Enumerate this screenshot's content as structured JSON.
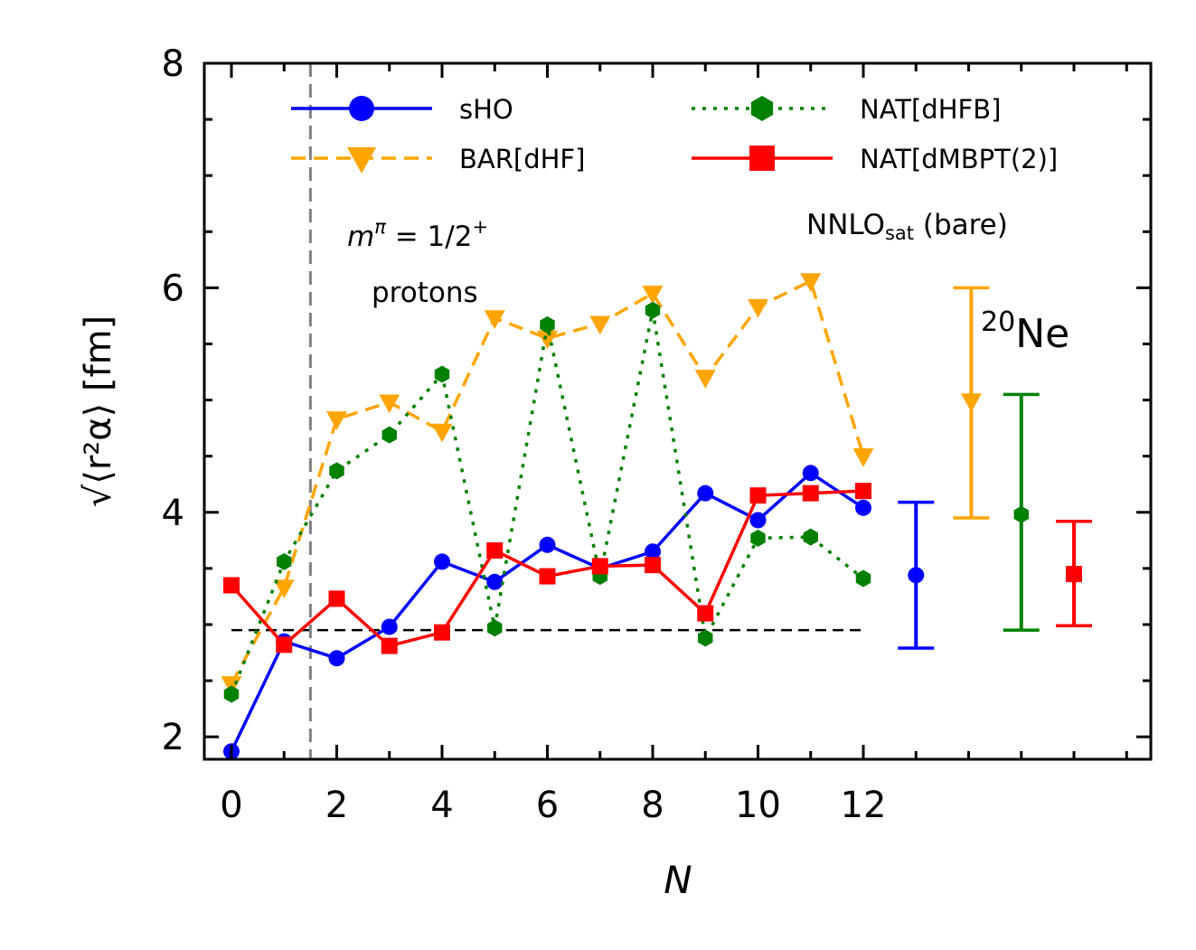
{
  "chart_data": {
    "type": "line",
    "title": "",
    "xlabel": "N",
    "ylabel": "√⟨r²α⟩  [fm]",
    "xlim": [
      -0.5,
      17.7
    ],
    "ylim": [
      1.8,
      8.0
    ],
    "x": [
      0,
      1,
      2,
      3,
      4,
      5,
      6,
      7,
      8,
      9,
      10,
      11,
      12
    ],
    "x_ticks": [
      "0",
      "2",
      "4",
      "6",
      "8",
      "10",
      "12"
    ],
    "y_ticks": [
      "2",
      "4",
      "6",
      "8"
    ],
    "reference_line": {
      "y": 2.95,
      "x_from": 0,
      "x_to": 12,
      "style": "dashed",
      "color": "#000000"
    },
    "vertical_line": {
      "x": 1.5,
      "style": "dashed",
      "color": "#808080"
    },
    "series": [
      {
        "name": "sHO",
        "color": "#0000ff",
        "style": "solid",
        "marker": "circle",
        "values": [
          1.87,
          2.85,
          2.7,
          2.98,
          3.56,
          3.38,
          3.71,
          3.5,
          3.65,
          4.17,
          3.93,
          4.35,
          4.04
        ]
      },
      {
        "name": "BAR[dHF]",
        "color": "#ffa500",
        "style": "dashed",
        "marker": "triangle-down",
        "values": [
          2.47,
          3.33,
          4.83,
          4.98,
          4.72,
          5.73,
          5.55,
          5.68,
          5.95,
          5.2,
          5.83,
          6.06,
          4.5
        ]
      },
      {
        "name": "NAT[dHFB]",
        "color": "#008000",
        "style": "dotted",
        "marker": "hexagon",
        "values": [
          2.38,
          3.56,
          4.37,
          4.69,
          5.23,
          2.97,
          5.67,
          3.43,
          5.8,
          2.88,
          3.77,
          3.78,
          3.41
        ]
      },
      {
        "name": "NAT[dMBPT(2)]",
        "color": "#ff0000",
        "style": "solid",
        "marker": "square",
        "values": [
          3.35,
          2.82,
          3.23,
          2.81,
          2.93,
          3.66,
          3.43,
          3.52,
          3.53,
          3.1,
          4.15,
          4.17,
          4.19
        ]
      }
    ],
    "error_bars": [
      {
        "series": "sHO",
        "x": 13.0,
        "center": 3.44,
        "low": 2.79,
        "high": 4.09,
        "color": "#0000ff",
        "marker": "circle"
      },
      {
        "series": "BAR[dHF]",
        "x": 14.05,
        "center": 4.99,
        "low": 3.95,
        "high": 6.0,
        "color": "#ffa500",
        "marker": "triangle-down"
      },
      {
        "series": "NAT[dHFB]",
        "x": 15.0,
        "center": 3.98,
        "low": 2.95,
        "high": 5.05,
        "color": "#008000",
        "marker": "hexagon"
      },
      {
        "series": "NAT[dMBPT(2)]",
        "x": 16.0,
        "center": 3.45,
        "low": 2.99,
        "high": 3.92,
        "color": "#ff0000",
        "marker": "square"
      }
    ],
    "legend_position": "top",
    "annotations": {
      "parity_label": "m^π = 1/2⁺",
      "parity_math": "m",
      "parity_sup_pi": "π",
      "parity_eq": " = 1/2",
      "parity_sup_plus": "+",
      "parity_sub": "protons",
      "interaction": "NNLO",
      "interaction_sub": "sat",
      "interaction_suffix": " (bare)",
      "nucleus_mass": "20",
      "nucleus_symbol": "Ne"
    }
  }
}
